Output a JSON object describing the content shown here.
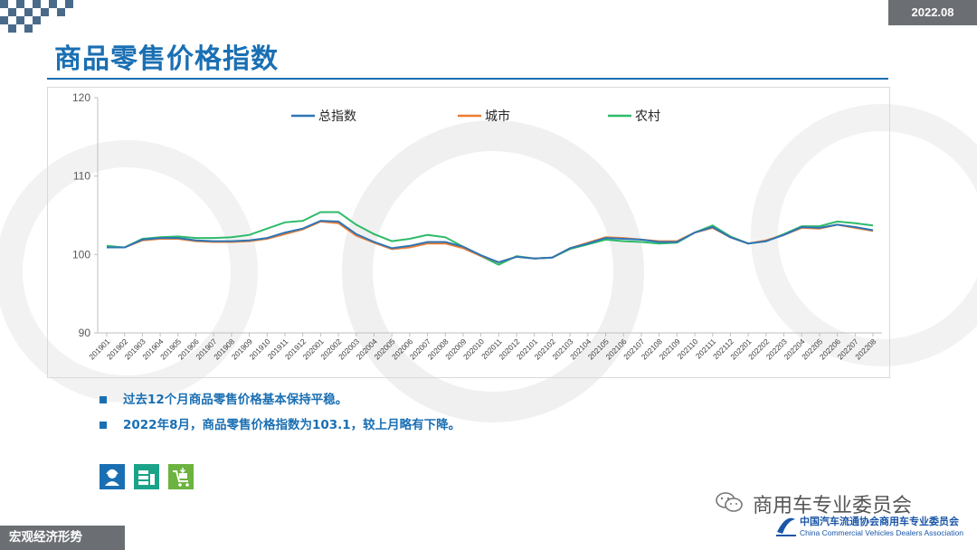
{
  "header": {
    "date_tag": "2022.08",
    "title": "商品零售价格指数"
  },
  "bullets": [
    "过去12个月商品零售价格基本保持平稳。",
    "2022年8月，商品零售价格指数为103.1，较上月略有下降。"
  ],
  "footer": {
    "section": "宏观经济形势",
    "wechat_account": "商用车专业委员会",
    "assoc_cn": "中国汽车流通协会商用车专业委员会",
    "assoc_en": "China Commercial Vehicles Dealers Association"
  },
  "icons": [
    {
      "name": "service-person-icon",
      "color": "#1a6fb3"
    },
    {
      "name": "money-stack-icon",
      "color": "#1aa389"
    },
    {
      "name": "shopping-cart-icon",
      "color": "#6cb33f"
    }
  ],
  "colors": {
    "accent": "#1a6fb3",
    "series_total": "#2e75b6",
    "series_city": "#ed7d31",
    "series_rural": "#2dbb6a"
  },
  "chart_data": {
    "type": "line",
    "title": "",
    "xlabel": "",
    "ylabel": "",
    "ylim": [
      90,
      120
    ],
    "yticks": [
      90,
      100,
      110,
      120
    ],
    "legend_position": "top",
    "grid": false,
    "x": [
      "201901",
      "201902",
      "201903",
      "201904",
      "201905",
      "201906",
      "201907",
      "201908",
      "201909",
      "201910",
      "201911",
      "201912",
      "202001",
      "202002",
      "202003",
      "202004",
      "202005",
      "202006",
      "202007",
      "202008",
      "202009",
      "202010",
      "202011",
      "202012",
      "202101",
      "202102",
      "202103",
      "202104",
      "202105",
      "202106",
      "202107",
      "202108",
      "202109",
      "202110",
      "202111",
      "202112",
      "202201",
      "202202",
      "202203",
      "202204",
      "202205",
      "202206",
      "202207",
      "202208"
    ],
    "series": [
      {
        "name": "总指数",
        "values": [
          100.9,
          100.9,
          101.9,
          102.1,
          102.1,
          101.8,
          101.7,
          101.7,
          101.8,
          102.1,
          102.8,
          103.3,
          104.3,
          104.2,
          102.6,
          101.6,
          100.8,
          101.1,
          101.6,
          101.6,
          101.0,
          99.9,
          99.0,
          99.7,
          99.5,
          99.6,
          100.8,
          101.4,
          102.1,
          102.0,
          101.9,
          101.6,
          101.6,
          102.8,
          103.5,
          102.2,
          101.4,
          101.7,
          102.5,
          103.5,
          103.4,
          103.8,
          103.5,
          103.1
        ]
      },
      {
        "name": "城市",
        "values": [
          100.9,
          100.9,
          101.8,
          102.0,
          102.0,
          101.7,
          101.6,
          101.6,
          101.7,
          102.0,
          102.6,
          103.2,
          104.2,
          104.0,
          102.4,
          101.5,
          100.7,
          100.9,
          101.4,
          101.4,
          100.8,
          99.8,
          99.0,
          99.7,
          99.5,
          99.6,
          100.8,
          101.5,
          102.2,
          102.1,
          101.9,
          101.7,
          101.7,
          102.8,
          103.4,
          102.2,
          101.4,
          101.8,
          102.5,
          103.4,
          103.3,
          103.8,
          103.4,
          103.0
        ]
      },
      {
        "name": "农村",
        "values": [
          101.1,
          100.9,
          102.0,
          102.2,
          102.3,
          102.1,
          102.1,
          102.2,
          102.5,
          103.3,
          104.1,
          104.3,
          105.4,
          105.4,
          103.8,
          102.6,
          101.7,
          102.0,
          102.5,
          102.2,
          101.0,
          99.8,
          98.7,
          99.8,
          99.5,
          99.6,
          100.7,
          101.3,
          101.9,
          101.7,
          101.6,
          101.4,
          101.5,
          102.8,
          103.7,
          102.3,
          101.4,
          101.7,
          102.6,
          103.6,
          103.6,
          104.2,
          104.0,
          103.7
        ]
      }
    ]
  }
}
